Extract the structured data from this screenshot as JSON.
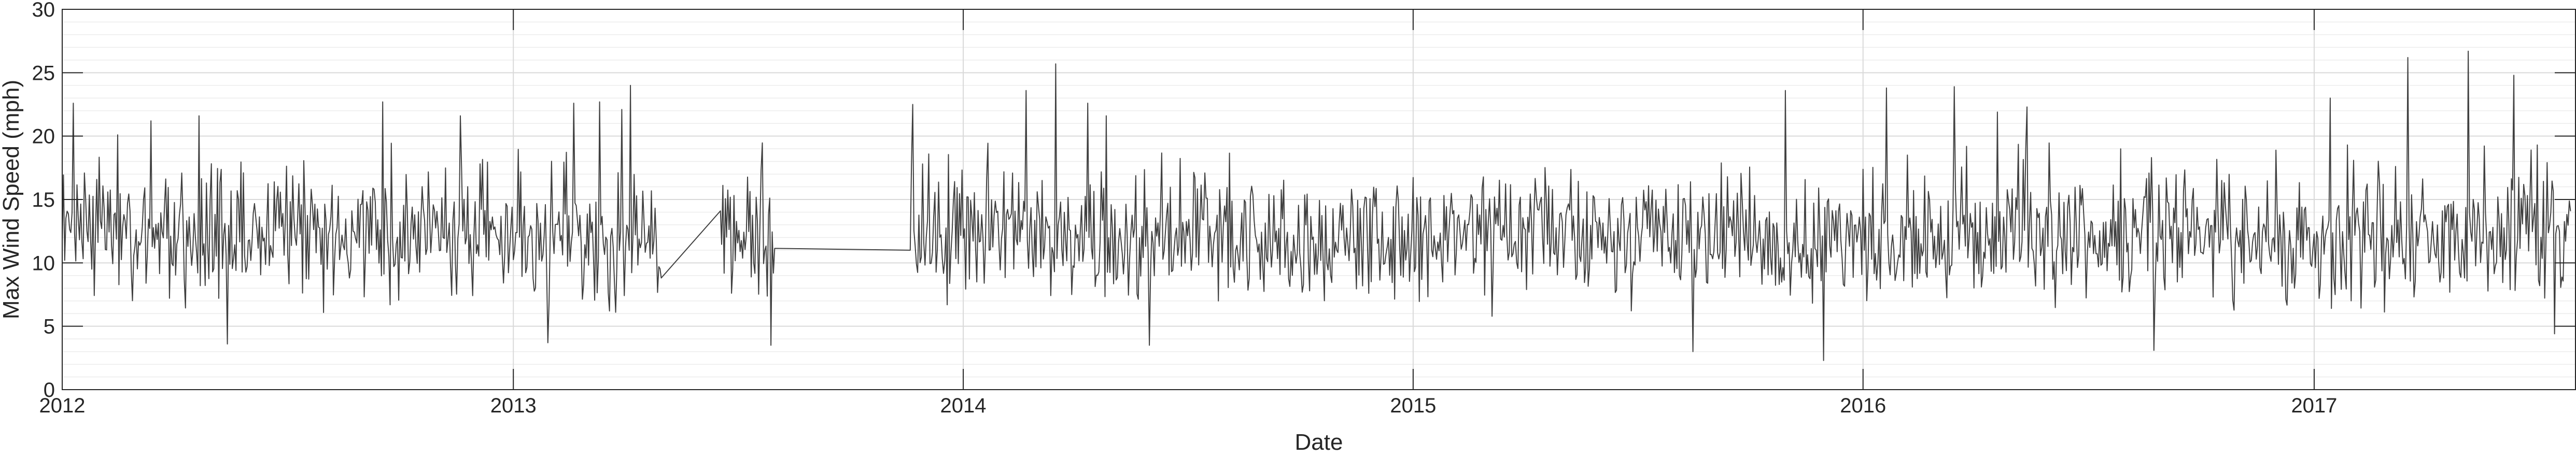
{
  "chart_data": {
    "type": "line",
    "xlabel": "Date",
    "ylabel": "Max Wind Speed (mph)",
    "title": "",
    "xlim": [
      "2012-01-01",
      "2017-08-01"
    ],
    "ylim": [
      0,
      30
    ],
    "grid": true,
    "minor_grid": true,
    "x_ticks": [
      "2012",
      "2013",
      "2014",
      "2015",
      "2016",
      "2017"
    ],
    "y_ticks": [
      0,
      5,
      10,
      15,
      20,
      25,
      30
    ],
    "series": [
      {
        "color": "#404040",
        "gaps": [
          [
            "2013-05-01",
            "2013-06-18"
          ],
          [
            "2013-08-01",
            "2013-11-19"
          ]
        ],
        "highlights": [
          [
            "2012-01-10",
            22.6
          ],
          [
            "2012-02-15",
            20.1
          ],
          [
            "2012-03-13",
            21.2
          ],
          [
            "2012-04-21",
            21.6
          ],
          [
            "2012-05-14",
            3.6
          ],
          [
            "2012-09-17",
            22.7
          ],
          [
            "2012-11-19",
            21.6
          ],
          [
            "2013-01-29",
            3.7
          ],
          [
            "2013-02-19",
            22.6
          ],
          [
            "2013-03-12",
            22.7
          ],
          [
            "2013-03-30",
            22.1
          ],
          [
            "2013-04-06",
            24.0
          ],
          [
            "2013-04-29",
            9.7
          ],
          [
            "2013-06-18",
            14.1
          ],
          [
            "2013-07-29",
            3.5
          ],
          [
            "2013-11-19",
            11.0
          ],
          [
            "2013-11-21",
            22.5
          ],
          [
            "2014-02-21",
            23.6
          ],
          [
            "2014-03-17",
            25.7
          ],
          [
            "2014-04-12",
            22.6
          ],
          [
            "2014-04-27",
            21.6
          ],
          [
            "2014-06-01",
            3.5
          ],
          [
            "2015-08-16",
            3.0
          ],
          [
            "2015-10-30",
            23.6
          ],
          [
            "2015-11-30",
            2.3
          ],
          [
            "2016-01-20",
            23.8
          ],
          [
            "2016-03-15",
            23.9
          ],
          [
            "2016-04-19",
            21.9
          ],
          [
            "2016-05-13",
            22.3
          ],
          [
            "2016-08-24",
            3.1
          ],
          [
            "2017-01-14",
            23.0
          ],
          [
            "2017-03-18",
            26.2
          ],
          [
            "2017-05-06",
            26.7
          ],
          [
            "2017-06-12",
            24.8
          ],
          [
            "2017-07-15",
            4.4
          ]
        ]
      }
    ]
  }
}
